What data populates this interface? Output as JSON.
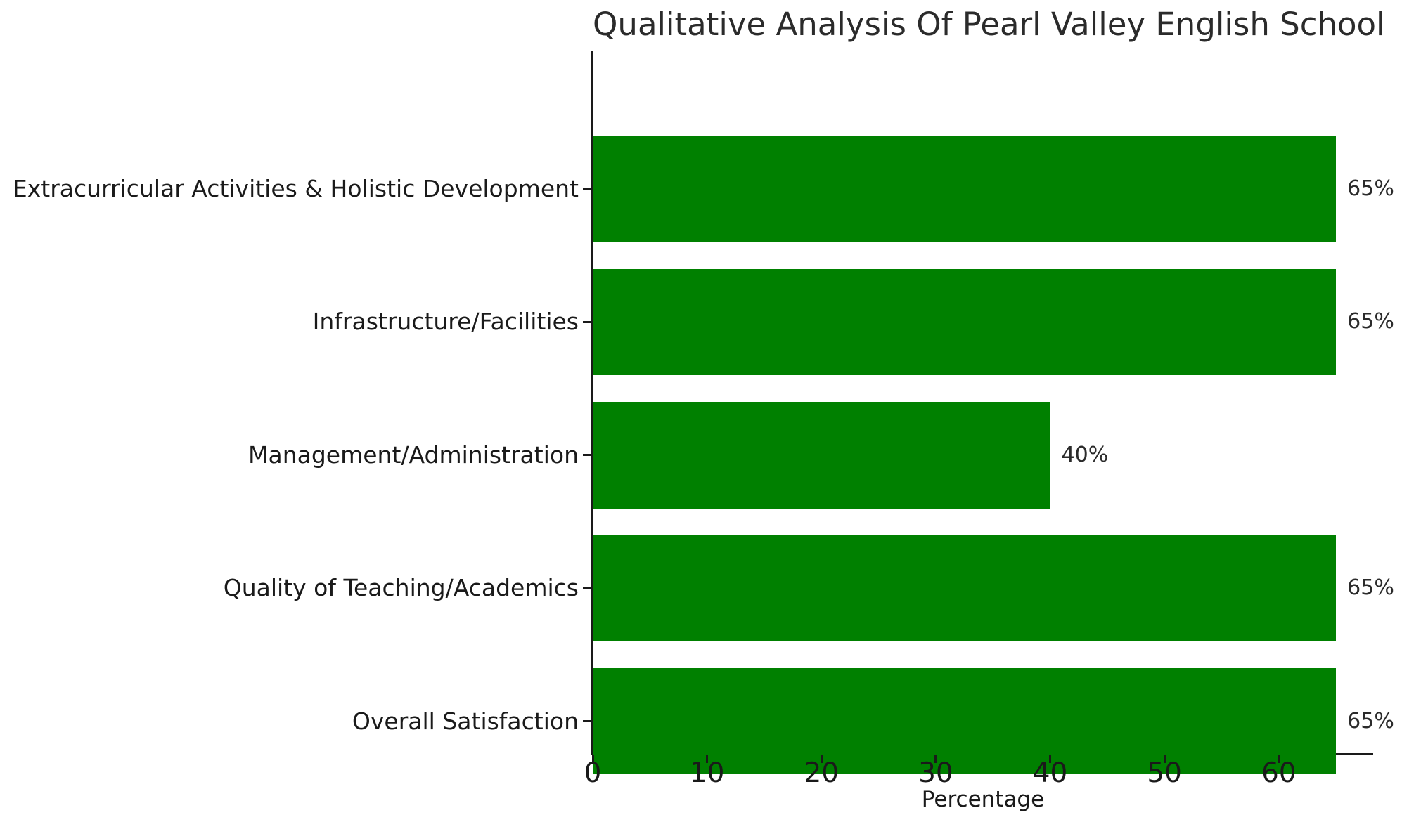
{
  "chart_data": {
    "type": "bar",
    "orientation": "horizontal",
    "title": "Qualitative Analysis Of Pearl Valley English School",
    "xlabel": "Percentage",
    "categories": [
      "Extracurricular Activities & Holistic Development",
      "Infrastructure/Facilities",
      "Management/Administration",
      "Quality of Teaching/Academics",
      "Overall Satisfaction"
    ],
    "values": [
      65,
      65,
      40,
      65,
      65
    ],
    "value_labels": [
      "65%",
      "65%",
      "40%",
      "65%",
      "65%"
    ],
    "x_ticks": [
      0,
      10,
      20,
      30,
      40,
      50,
      60
    ],
    "xlim": [
      0,
      68.25
    ],
    "bar_color": "#008000",
    "text_color": "#1a1a1a",
    "grid": false,
    "legend_position": "none"
  }
}
